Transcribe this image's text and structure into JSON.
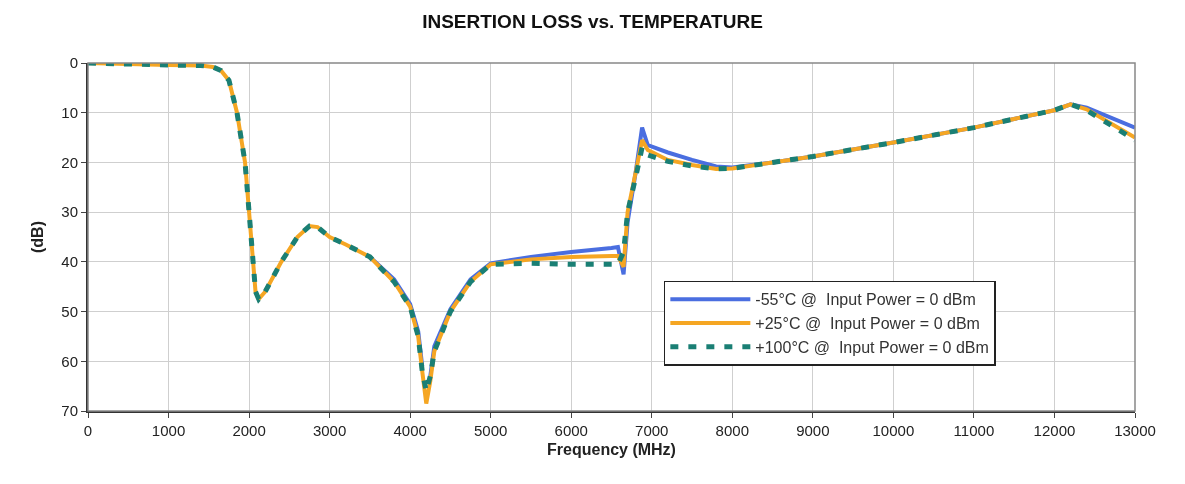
{
  "chart_data": {
    "type": "line",
    "title": "INSERTION LOSS vs. TEMPERATURE",
    "xlabel": "Frequency (MHz)",
    "ylabel": "(dB)",
    "x": [
      0,
      500,
      1000,
      1400,
      1550,
      1650,
      1750,
      1850,
      1950,
      2000,
      2050,
      2080,
      2120,
      2200,
      2400,
      2600,
      2750,
      2850,
      3000,
      3200,
      3500,
      3800,
      4000,
      4100,
      4150,
      4200,
      4250,
      4300,
      4500,
      4750,
      5000,
      5500,
      6000,
      6500,
      6580,
      6650,
      6700,
      6800,
      6880,
      6950,
      7200,
      7500,
      7800,
      8000,
      8500,
      9000,
      10000,
      11000,
      12000,
      12200,
      12400,
      13000
    ],
    "series": [
      {
        "name": "-55°C @  Input Power = 0 dBm",
        "color": "#4a6ee0",
        "line_style": "solid",
        "values": [
          null,
          null,
          null,
          null,
          null,
          null,
          null,
          null,
          null,
          null,
          null,
          null,
          null,
          null,
          null,
          null,
          null,
          null,
          null,
          null,
          39,
          43.5,
          48.5,
          54,
          61,
          null,
          63,
          57,
          49.5,
          43.5,
          40.3,
          39,
          38,
          37.2,
          37,
          42.5,
          32,
          22,
          13,
          16.5,
          18,
          19.5,
          20.8,
          21,
          20,
          18.8,
          16,
          13,
          9.5,
          8.3,
          9,
          13
        ]
      },
      {
        "name": "+25°C @  Input Power = 0 dBm",
        "color": "#f5a623",
        "line_style": "solid",
        "values": [
          0,
          0.2,
          0.4,
          0.5,
          0.8,
          1.5,
          3.5,
          10,
          20,
          30,
          40,
          46,
          47.5,
          46,
          40,
          35,
          32.8,
          33,
          35,
          36.5,
          39,
          44,
          49,
          55,
          62,
          68.5,
          64,
          58,
          50,
          44,
          40.5,
          39.5,
          39,
          38.8,
          38.8,
          41,
          30,
          22,
          15.5,
          17.5,
          19.5,
          20.5,
          21.3,
          21.2,
          20,
          18.8,
          16,
          13,
          9.5,
          8.3,
          9.3,
          15
        ]
      },
      {
        "name": "+100°C @  Input Power = 0 dBm",
        "color": "#1a7f74",
        "line_style": "dashed",
        "values": [
          0,
          0.2,
          0.4,
          0.5,
          0.8,
          1.5,
          3.5,
          10,
          20,
          30,
          40,
          46,
          47.5,
          46,
          40,
          35,
          32.8,
          33,
          35,
          36.5,
          39,
          44,
          49,
          55,
          62,
          66,
          63,
          58,
          50,
          44,
          40.5,
          40.3,
          40.5,
          40.5,
          40.5,
          38,
          30,
          23,
          17,
          18.5,
          19.8,
          20.7,
          21.3,
          21.2,
          20,
          18.8,
          16,
          13,
          9.5,
          8.3,
          9.5,
          15.5
        ]
      }
    ],
    "xlim": [
      0,
      13000
    ],
    "xticks": [
      0,
      1000,
      2000,
      3000,
      4000,
      5000,
      6000,
      7000,
      8000,
      9000,
      10000,
      11000,
      12000,
      13000
    ],
    "ylim": [
      70,
      0
    ],
    "yticks": [
      0,
      10,
      20,
      30,
      40,
      50,
      60,
      70
    ],
    "grid": true,
    "legend": "bottom right",
    "marker": "none"
  }
}
